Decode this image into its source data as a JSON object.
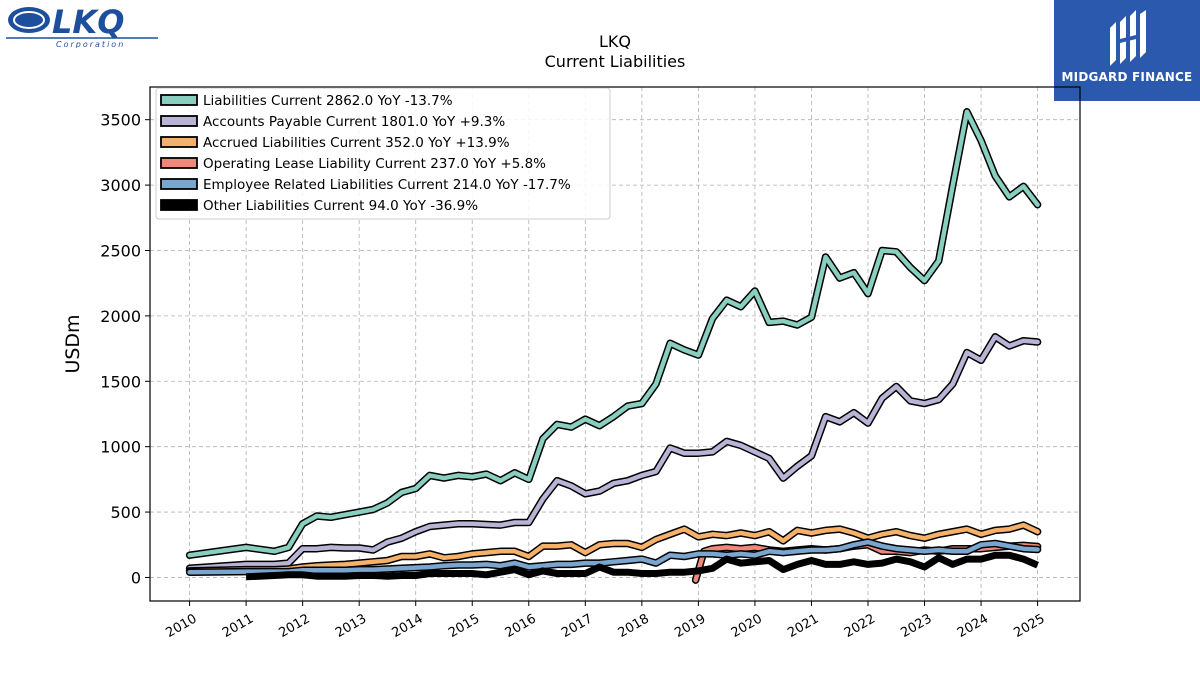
{
  "brand_left": {
    "name": "LKQ",
    "subtitle": "Corporation"
  },
  "brand_right": {
    "name": "MIDGARD FINANCE"
  },
  "chart_data": {
    "type": "line",
    "title": "LKQ",
    "subtitle": "Current  Liabilities",
    "ylabel": "USDm",
    "xlabel": "",
    "ylim": [
      -180,
      3750
    ],
    "xlim": [
      2009.3,
      2025.75
    ],
    "yticks": [
      0,
      500,
      1000,
      1500,
      2000,
      2500,
      3000,
      3500
    ],
    "xticks": [
      "2010",
      "2011",
      "2012",
      "2013",
      "2014",
      "2015",
      "2016",
      "2017",
      "2018",
      "2019",
      "2020",
      "2021",
      "2022",
      "2023",
      "2024",
      "2025"
    ],
    "grid": true,
    "legend_position": "top-left",
    "series": [
      {
        "name": "Liabilities Current  2862.0 YoY -13.7%",
        "color": "#88cfc0",
        "x": [
          2010.0,
          2011.0,
          2011.5,
          2011.75,
          2012.0,
          2012.25,
          2012.5,
          2012.75,
          2013.0,
          2013.25,
          2013.5,
          2013.75,
          2014.0,
          2014.25,
          2014.5,
          2014.75,
          2015.0,
          2015.25,
          2015.5,
          2015.75,
          2016.0,
          2016.25,
          2016.5,
          2016.75,
          2017.0,
          2017.25,
          2017.5,
          2017.75,
          2018.0,
          2018.25,
          2018.5,
          2018.75,
          2019.0,
          2019.25,
          2019.5,
          2019.75,
          2020.0,
          2020.25,
          2020.5,
          2020.75,
          2021.0,
          2021.25,
          2021.5,
          2021.75,
          2022.0,
          2022.25,
          2022.5,
          2022.75,
          2023.0,
          2023.25,
          2023.5,
          2023.75,
          2024.0,
          2024.25,
          2024.5,
          2024.75,
          2025.0
        ],
        "y": [
          170,
          230,
          200,
          230,
          410,
          470,
          460,
          480,
          500,
          520,
          570,
          650,
          680,
          780,
          760,
          780,
          770,
          790,
          740,
          800,
          750,
          1060,
          1170,
          1150,
          1210,
          1160,
          1230,
          1310,
          1330,
          1480,
          1790,
          1740,
          1700,
          1980,
          2120,
          2070,
          2190,
          1950,
          1960,
          1930,
          1990,
          2450,
          2290,
          2330,
          2170,
          2500,
          2490,
          2370,
          2270,
          2420,
          3000,
          3560,
          3340,
          3070,
          2910,
          2990,
          2850
        ]
      },
      {
        "name": "Accounts Payable Current  1801.0 YoY +9.3%",
        "color": "#b9b3d6",
        "x": [
          2010.0,
          2011.0,
          2011.5,
          2011.75,
          2012.0,
          2012.25,
          2012.5,
          2012.75,
          2013.0,
          2013.25,
          2013.5,
          2013.75,
          2014.0,
          2014.25,
          2014.5,
          2014.75,
          2015.0,
          2015.25,
          2015.5,
          2015.75,
          2016.0,
          2016.25,
          2016.5,
          2016.75,
          2017.0,
          2017.25,
          2017.5,
          2017.75,
          2018.0,
          2018.25,
          2018.5,
          2018.75,
          2019.0,
          2019.25,
          2019.5,
          2019.75,
          2020.0,
          2020.25,
          2020.5,
          2020.75,
          2021.0,
          2021.25,
          2021.5,
          2021.75,
          2022.0,
          2022.25,
          2022.5,
          2022.75,
          2023.0,
          2023.25,
          2023.5,
          2023.75,
          2024.0,
          2024.25,
          2024.5,
          2024.75,
          2025.0
        ],
        "y": [
          70,
          100,
          100,
          110,
          220,
          220,
          230,
          225,
          225,
          210,
          270,
          300,
          350,
          390,
          400,
          410,
          410,
          405,
          400,
          420,
          420,
          600,
          740,
          700,
          640,
          660,
          720,
          740,
          780,
          810,
          990,
          950,
          950,
          960,
          1040,
          1010,
          960,
          910,
          760,
          850,
          930,
          1230,
          1190,
          1260,
          1180,
          1370,
          1460,
          1350,
          1330,
          1360,
          1480,
          1720,
          1660,
          1840,
          1770,
          1810,
          1800
        ]
      },
      {
        "name": "Accrued Liabilities Current  352.0 YoY +13.9%",
        "color": "#f5b069",
        "x": [
          2010.0,
          2011.0,
          2011.5,
          2011.75,
          2012.0,
          2012.25,
          2012.5,
          2012.75,
          2013.0,
          2013.25,
          2013.5,
          2013.75,
          2014.0,
          2014.25,
          2014.5,
          2014.75,
          2015.0,
          2015.25,
          2015.5,
          2015.75,
          2016.0,
          2016.25,
          2016.5,
          2016.75,
          2017.0,
          2017.25,
          2017.5,
          2017.75,
          2018.0,
          2018.25,
          2018.5,
          2018.75,
          2019.0,
          2019.25,
          2019.5,
          2019.75,
          2020.0,
          2020.25,
          2020.5,
          2020.75,
          2021.0,
          2021.25,
          2021.5,
          2021.75,
          2022.0,
          2022.25,
          2022.5,
          2022.75,
          2023.0,
          2023.25,
          2023.5,
          2023.75,
          2024.0,
          2024.25,
          2024.5,
          2024.75,
          2025.0
        ],
        "y": [
          50,
          60,
          60,
          65,
          80,
          90,
          95,
          100,
          110,
          120,
          130,
          160,
          160,
          180,
          150,
          160,
          180,
          190,
          200,
          200,
          160,
          240,
          240,
          250,
          190,
          250,
          260,
          260,
          230,
          290,
          330,
          370,
          310,
          330,
          320,
          340,
          320,
          350,
          280,
          360,
          340,
          360,
          370,
          340,
          300,
          330,
          350,
          320,
          300,
          330,
          350,
          370,
          330,
          360,
          370,
          400,
          350
        ]
      },
      {
        "name": "Operating Lease Liability Current  237.0 YoY +5.8%",
        "color": "#ef8878",
        "x": [
          2018.95,
          2019.1,
          2019.25,
          2019.5,
          2019.75,
          2020.0,
          2020.25,
          2020.5,
          2020.75,
          2021.0,
          2021.25,
          2021.5,
          2021.75,
          2022.0,
          2022.25,
          2022.5,
          2022.75,
          2023.0,
          2023.25,
          2023.5,
          2023.75,
          2024.0,
          2024.25,
          2024.5,
          2024.75,
          2025.0
        ],
        "y": [
          -20,
          200,
          220,
          230,
          220,
          230,
          210,
          200,
          210,
          220,
          210,
          220,
          240,
          250,
          200,
          200,
          190,
          210,
          200,
          220,
          220,
          220,
          230,
          240,
          245,
          237
        ]
      },
      {
        "name": "Employee Related Liabilities Current  214.0 YoY -17.7%",
        "color": "#7aa5ce",
        "x": [
          2010.0,
          2011.0,
          2011.5,
          2011.75,
          2012.0,
          2012.25,
          2012.5,
          2012.75,
          2013.0,
          2013.25,
          2013.5,
          2013.75,
          2014.0,
          2014.25,
          2014.5,
          2014.75,
          2015.0,
          2015.25,
          2015.5,
          2015.75,
          2016.0,
          2016.25,
          2016.5,
          2016.75,
          2017.0,
          2017.25,
          2017.5,
          2017.75,
          2018.0,
          2018.25,
          2018.5,
          2018.75,
          2019.0,
          2019.25,
          2019.5,
          2019.75,
          2020.0,
          2020.25,
          2020.5,
          2020.75,
          2021.0,
          2021.25,
          2021.5,
          2021.75,
          2022.0,
          2022.25,
          2022.5,
          2022.75,
          2023.0,
          2023.25,
          2023.5,
          2023.75,
          2024.0,
          2024.25,
          2024.5,
          2024.75,
          2025.0
        ],
        "y": [
          40,
          45,
          45,
          45,
          55,
          55,
          55,
          55,
          60,
          60,
          65,
          70,
          75,
          80,
          90,
          95,
          95,
          100,
          90,
          110,
          80,
          90,
          100,
          100,
          110,
          110,
          120,
          130,
          140,
          110,
          170,
          160,
          180,
          180,
          170,
          180,
          170,
          200,
          190,
          200,
          210,
          210,
          220,
          250,
          270,
          240,
          220,
          210,
          200,
          210,
          200,
          200,
          250,
          260,
          240,
          220,
          214
        ]
      },
      {
        "name": "Other Liabilities Current  94.0 YoY -36.9%",
        "color": "#000000",
        "x": [
          2011.0,
          2011.5,
          2011.75,
          2012.0,
          2012.25,
          2012.5,
          2012.75,
          2013.0,
          2013.25,
          2013.5,
          2013.75,
          2014.0,
          2014.25,
          2014.5,
          2014.75,
          2015.0,
          2015.25,
          2015.5,
          2015.75,
          2016.0,
          2016.25,
          2016.5,
          2016.75,
          2017.0,
          2017.25,
          2017.5,
          2017.75,
          2018.0,
          2018.25,
          2018.5,
          2018.75,
          2019.0,
          2019.25,
          2019.5,
          2019.75,
          2020.0,
          2020.25,
          2020.5,
          2020.75,
          2021.0,
          2021.25,
          2021.5,
          2021.75,
          2022.0,
          2022.25,
          2022.5,
          2022.75,
          2023.0,
          2023.25,
          2023.5,
          2023.75,
          2024.0,
          2024.25,
          2024.5,
          2024.75,
          2025.0
        ],
        "y": [
          5,
          15,
          20,
          20,
          10,
          10,
          10,
          15,
          15,
          10,
          15,
          15,
          30,
          30,
          30,
          30,
          20,
          40,
          60,
          20,
          50,
          30,
          30,
          30,
          80,
          40,
          40,
          30,
          30,
          40,
          40,
          50,
          70,
          140,
          110,
          120,
          130,
          60,
          100,
          130,
          100,
          100,
          120,
          100,
          110,
          140,
          120,
          80,
          150,
          100,
          140,
          140,
          170,
          170,
          140,
          94
        ]
      }
    ]
  }
}
